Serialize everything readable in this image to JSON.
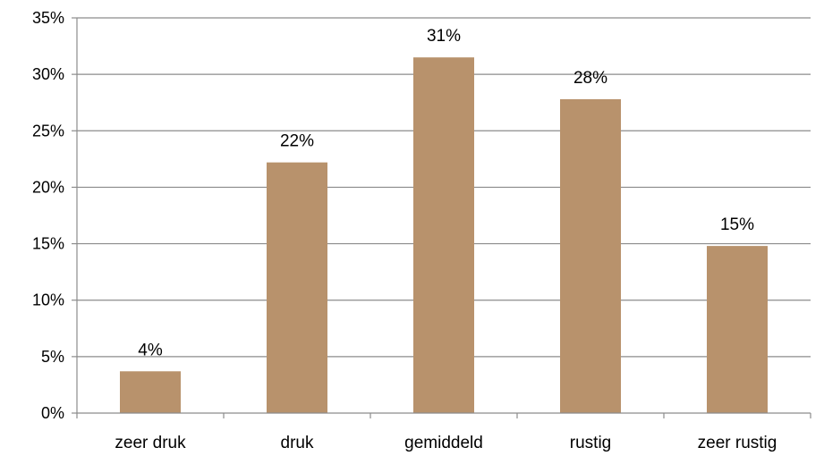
{
  "chart_data": {
    "type": "bar",
    "title": "",
    "xlabel": "",
    "ylabel": "",
    "categories": [
      "zeer druk",
      "druk",
      "gemiddeld",
      "rustig",
      "zeer rustig"
    ],
    "values": [
      3.7,
      22.2,
      31.5,
      27.8,
      14.8
    ],
    "data_labels": [
      "4%",
      "22%",
      "31%",
      "28%",
      "15%"
    ],
    "ylim": [
      0,
      35
    ],
    "yticks": [
      0,
      5,
      10,
      15,
      20,
      25,
      30,
      35
    ],
    "ytick_labels": [
      "0%",
      "5%",
      "10%",
      "15%",
      "20%",
      "25%",
      "30%",
      "35%"
    ],
    "grid": true,
    "legend": "none",
    "colors": {
      "bar": "#b8926c",
      "grid": "#8c8c8c",
      "axis": "#8c8c8c"
    }
  }
}
